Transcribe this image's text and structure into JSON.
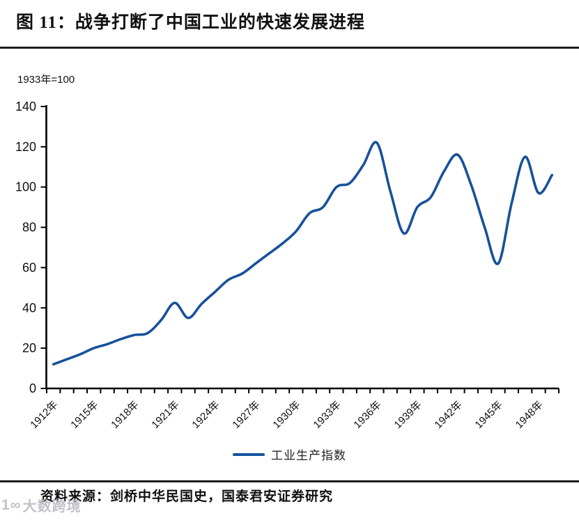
{
  "header": {
    "title": "图 11：战争打断了中国工业的快速发展进程"
  },
  "chart_data": {
    "type": "line",
    "title": "战争打断了中国工业的快速发展进程",
    "note": "1933年=100",
    "x": [
      1912,
      1913,
      1914,
      1915,
      1916,
      1917,
      1918,
      1919,
      1920,
      1921,
      1922,
      1923,
      1924,
      1925,
      1926,
      1927,
      1928,
      1929,
      1930,
      1931,
      1932,
      1933,
      1934,
      1935,
      1936,
      1937,
      1938,
      1939,
      1940,
      1941,
      1942,
      1943,
      1944,
      1945,
      1946,
      1947,
      1948,
      1949
    ],
    "series": [
      {
        "name": "工业生产指数",
        "color": "#17519b",
        "values": [
          12,
          14.5,
          17,
          20,
          22,
          24.5,
          26.5,
          27.5,
          34,
          42.5,
          35,
          42,
          48,
          54,
          57,
          62,
          67,
          72,
          78,
          87,
          90,
          100,
          102,
          111,
          122,
          98,
          77,
          90,
          95,
          108,
          116,
          101,
          80,
          62,
          92,
          115,
          97,
          106
        ]
      }
    ],
    "x_tick_labels": [
      "1912年",
      "1915年",
      "1918年",
      "1921年",
      "1924年",
      "1927年",
      "1930年",
      "1933年",
      "1936年",
      "1939年",
      "1942年",
      "1945年",
      "1948年"
    ],
    "x_label_interval_years": 3,
    "ylim": [
      0,
      140
    ],
    "y_tick_step": 20,
    "grid": "off",
    "legend_position": "bottom"
  },
  "legend": {
    "label": "工业生产指数"
  },
  "footer": {
    "source": "资料来源：剑桥中华民国史，国泰君安证券研究"
  },
  "watermark": {
    "logo": "1∞",
    "text": "大数跨境"
  }
}
